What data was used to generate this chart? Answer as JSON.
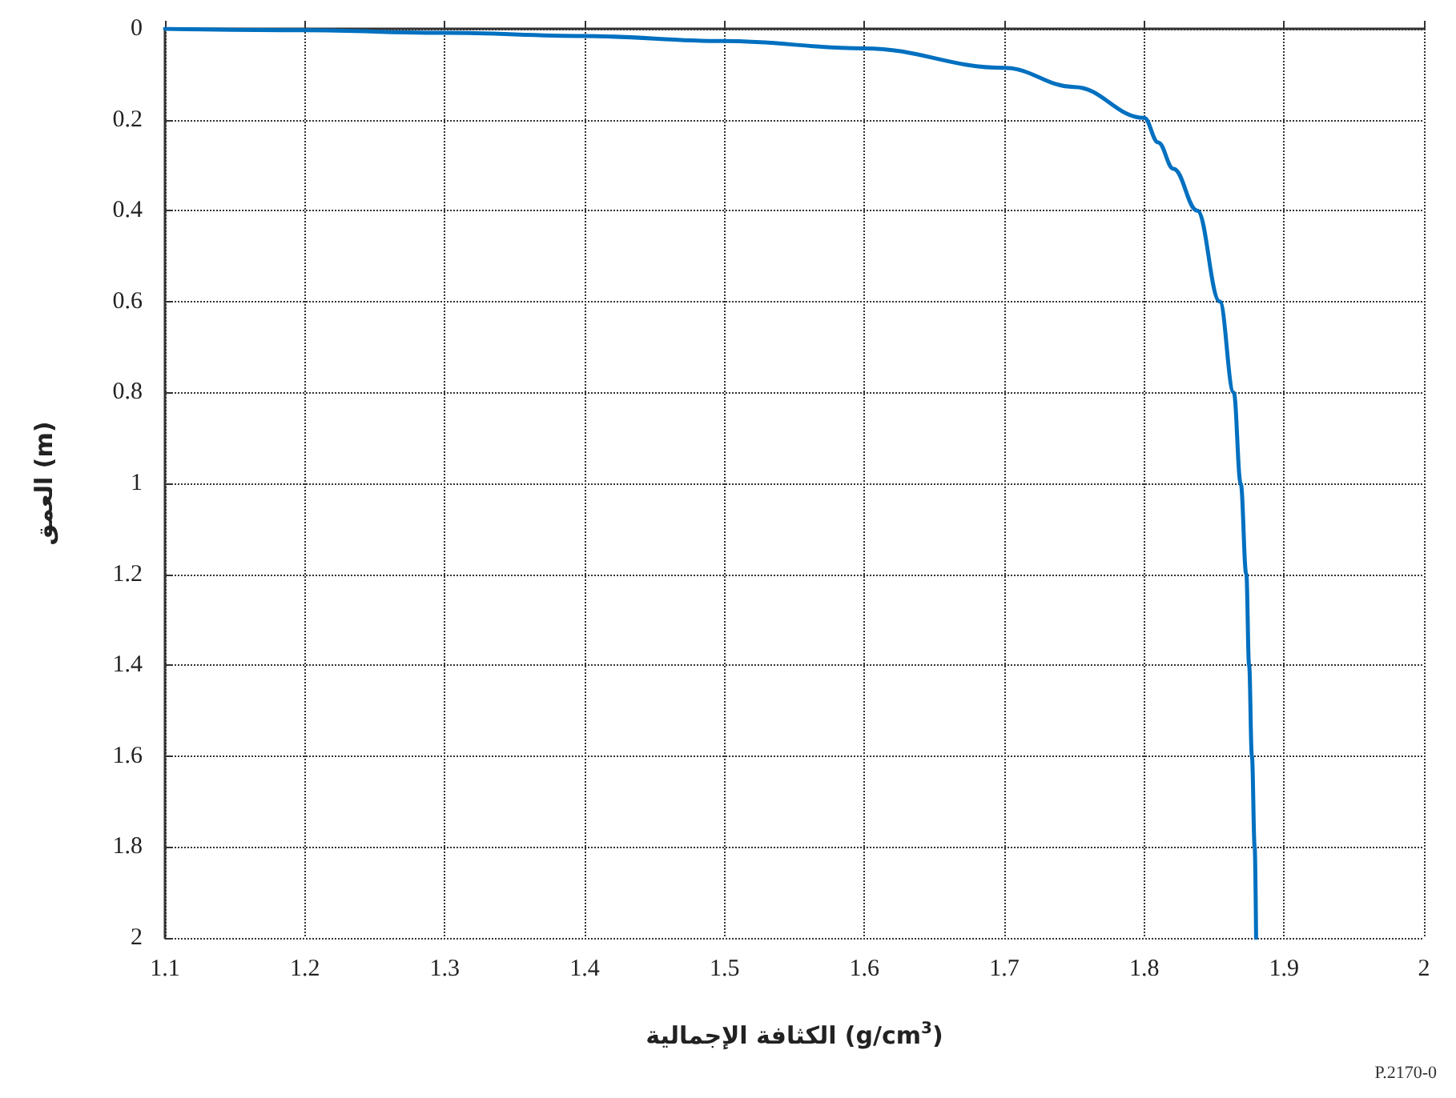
{
  "chart_data": {
    "type": "line",
    "xlabel": "الكثافة الإجمالية (g/cm$^{3}$)",
    "ylabel": "العمق (m)",
    "annotations": [
      "P.2170-0"
    ],
    "series": [
      {
        "color": "#0070c0",
        "x": [
          1.1,
          1.2,
          1.3,
          1.4,
          1.5,
          1.6,
          1.7,
          1.75,
          1.8,
          1.81,
          1.821,
          1.838,
          1.854,
          1.864,
          1.869,
          1.873,
          1.875,
          1.877,
          1.879,
          1.88
        ],
        "values": [
          0,
          0.003,
          0.009,
          0.016,
          0.027,
          0.043,
          0.086,
          0.128,
          0.196,
          0.25,
          0.308,
          0.4,
          0.6,
          0.8,
          1.0,
          1.2,
          1.4,
          1.6,
          1.8,
          2.0
        ]
      }
    ],
    "xlim": [
      1.1,
      2
    ],
    "xticks": [
      1.1,
      1.2,
      1.3,
      1.4,
      1.5,
      1.6,
      1.7,
      1.8,
      1.9,
      2
    ],
    "ylim": [
      2,
      0
    ],
    "yticks": [
      0,
      0.2,
      0.4,
      0.6,
      0.8,
      1,
      1.2,
      1.4,
      1.6,
      1.8,
      2
    ],
    "grid": true,
    "marker": "none",
    "line_style": "solid"
  }
}
